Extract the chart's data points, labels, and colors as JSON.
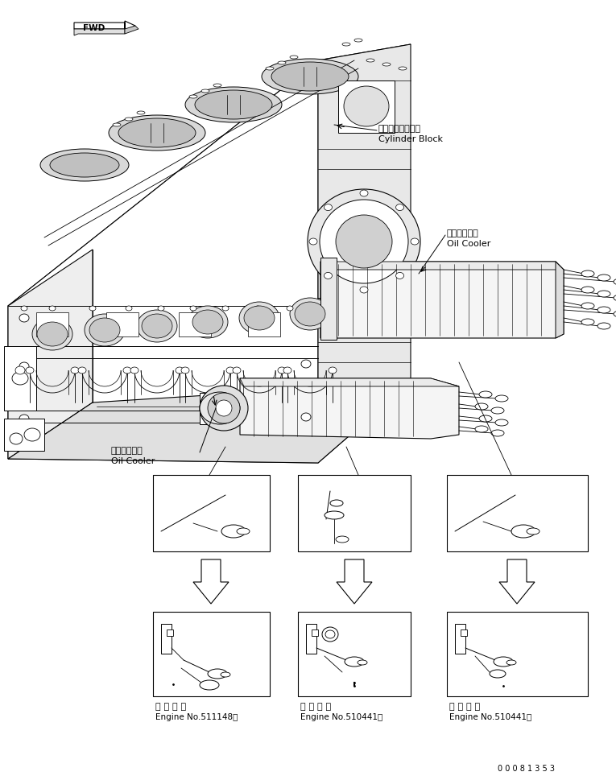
{
  "bg_color": "#ffffff",
  "line_color": "#000000",
  "fig_width": 7.65,
  "fig_height": 9.64,
  "dpi": 100,
  "title_code": "0 0 0 8 1 3 5 3",
  "label_cylinder_block_jp": "シリンダブロック",
  "label_cylinder_block_en": "Cylinder Block",
  "label_oil_cooler_jp": "オイルクーラ",
  "label_oil_cooler_en": "Oil Cooler",
  "label_oil_cooler2_jp": "オイルクーラ",
  "label_oil_cooler2_en": "Oil Cooler",
  "fwd_label": "FWD",
  "box1_label_jp": "適 用 号 機",
  "box1_label_en": "Engine No.511148～",
  "box2_label_jp": "適 用 号 機",
  "box2_label_en": "Engine No.510441～",
  "box3_label_jp": "適 用 号 機",
  "box3_label_en": "Engine No.510441～"
}
